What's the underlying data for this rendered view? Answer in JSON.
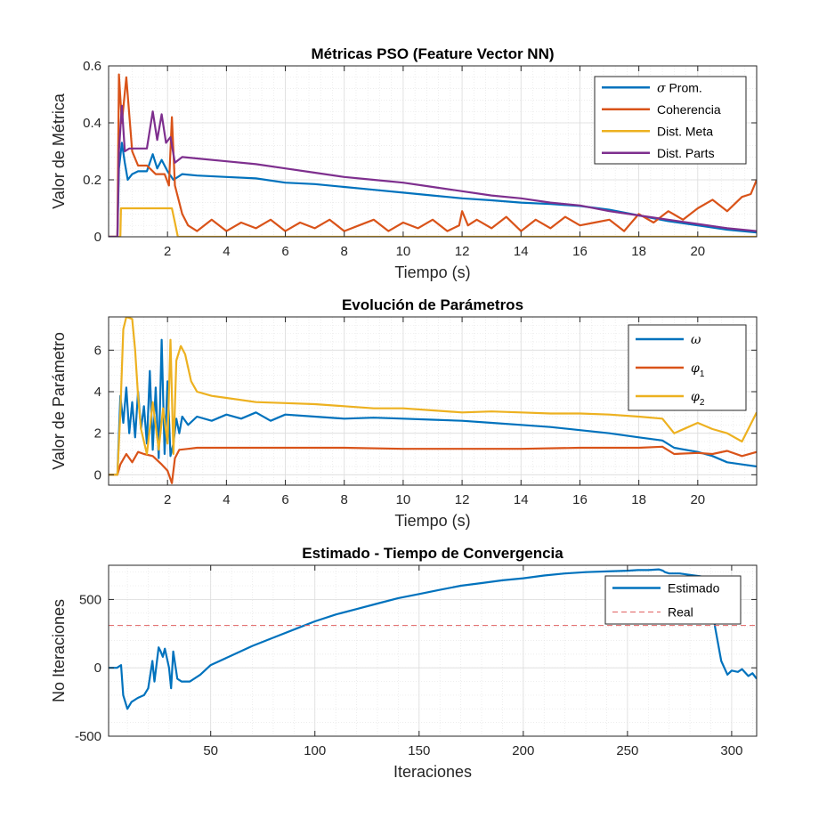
{
  "colors": {
    "blue": "#0072BD",
    "orange": "#D95319",
    "yellow": "#EDB120",
    "purple": "#7E2F8E",
    "red_dashed": "#E06060",
    "grid": "#DCDCDC",
    "axis": "#262626"
  },
  "chart_data": [
    {
      "type": "line",
      "title": "Métricas PSO (Feature Vector NN)",
      "xlabel": "Tiempo (s)",
      "ylabel": "Valor de Métrica",
      "xlim": [
        0,
        22
      ],
      "ylim": [
        0,
        0.6
      ],
      "xticks": [
        2,
        4,
        6,
        8,
        10,
        12,
        14,
        16,
        18,
        20
      ],
      "xtick_labels": [
        "2",
        "4",
        "6",
        "8",
        "10",
        "12",
        "14",
        "16",
        "18",
        "20"
      ],
      "yticks": [
        0,
        0.2,
        0.4,
        0.6
      ],
      "ytick_labels": [
        "0",
        "0.2",
        "0.4",
        "0.6"
      ],
      "grid": "on (with minor grid)",
      "legend_position": "top-right",
      "series": [
        {
          "name": "σ Prom.",
          "legend_symbol": "σ",
          "legend_rest": " Prom.",
          "color": "blue",
          "x": [
            0,
            0.3,
            0.35,
            0.45,
            0.55,
            0.65,
            0.8,
            1.0,
            1.3,
            1.5,
            1.65,
            1.8,
            2.0,
            2.2,
            2.35,
            2.5,
            3,
            4,
            5,
            6,
            7,
            8,
            9,
            10,
            11,
            12,
            13,
            14,
            15,
            16,
            17,
            18,
            19,
            20,
            21,
            22
          ],
          "y": [
            0,
            0,
            0.24,
            0.33,
            0.26,
            0.2,
            0.22,
            0.23,
            0.23,
            0.29,
            0.24,
            0.27,
            0.23,
            0.2,
            0.21,
            0.22,
            0.215,
            0.21,
            0.205,
            0.19,
            0.185,
            0.175,
            0.165,
            0.155,
            0.145,
            0.135,
            0.128,
            0.12,
            0.115,
            0.108,
            0.095,
            0.075,
            0.055,
            0.04,
            0.025,
            0.015
          ]
        },
        {
          "name": "Coherencia",
          "color": "orange",
          "x": [
            0,
            0.3,
            0.35,
            0.45,
            0.6,
            0.8,
            1.0,
            1.3,
            1.6,
            1.9,
            2.05,
            2.15,
            2.25,
            2.5,
            2.7,
            3,
            3.5,
            4,
            4.5,
            5,
            5.5,
            6,
            6.5,
            7,
            7.5,
            8,
            8.5,
            9,
            9.5,
            10,
            10.5,
            11,
            11.5,
            11.9,
            12.0,
            12.2,
            12.5,
            13,
            13.5,
            14,
            14.5,
            15,
            15.5,
            16,
            16.5,
            17,
            17.5,
            18,
            18.5,
            19,
            19.5,
            20,
            20.5,
            21,
            21.5,
            21.8,
            22
          ],
          "y": [
            0,
            0,
            0.57,
            0.4,
            0.56,
            0.3,
            0.25,
            0.25,
            0.22,
            0.22,
            0.18,
            0.42,
            0.18,
            0.08,
            0.04,
            0.02,
            0.06,
            0.02,
            0.05,
            0.03,
            0.06,
            0.02,
            0.05,
            0.03,
            0.06,
            0.02,
            0.04,
            0.06,
            0.02,
            0.05,
            0.03,
            0.06,
            0.02,
            0.04,
            0.09,
            0.04,
            0.06,
            0.03,
            0.07,
            0.02,
            0.06,
            0.03,
            0.07,
            0.04,
            0.05,
            0.06,
            0.02,
            0.08,
            0.05,
            0.09,
            0.06,
            0.1,
            0.13,
            0.09,
            0.14,
            0.15,
            0.2
          ]
        },
        {
          "name": "Dist. Meta",
          "color": "yellow",
          "x": [
            0,
            0.3,
            0.4,
            0.42,
            1.0,
            1.5,
            2.0,
            2.15,
            2.25,
            2.35,
            3,
            22
          ],
          "y": [
            0,
            0,
            0.0,
            0.1,
            0.1,
            0.1,
            0.1,
            0.1,
            0.05,
            0.0,
            0.0,
            0.0
          ]
        },
        {
          "name": "Dist. Parts",
          "color": "purple",
          "x": [
            0,
            0.3,
            0.35,
            0.45,
            0.55,
            0.7,
            1.0,
            1.3,
            1.5,
            1.65,
            1.8,
            1.95,
            2.1,
            2.25,
            2.5,
            3,
            4,
            5,
            6,
            7,
            8,
            9,
            10,
            11,
            12,
            13,
            14,
            15,
            16,
            17,
            18,
            19,
            20,
            21,
            22
          ],
          "y": [
            0,
            0,
            0.3,
            0.46,
            0.3,
            0.31,
            0.31,
            0.31,
            0.44,
            0.34,
            0.43,
            0.33,
            0.35,
            0.26,
            0.28,
            0.275,
            0.265,
            0.255,
            0.24,
            0.225,
            0.21,
            0.2,
            0.19,
            0.175,
            0.16,
            0.145,
            0.135,
            0.12,
            0.11,
            0.09,
            0.075,
            0.06,
            0.045,
            0.03,
            0.02
          ]
        }
      ]
    },
    {
      "type": "line",
      "title": "Evolución de Parámetros",
      "xlabel": "Tiempo (s)",
      "ylabel": "Valor de Parámetro",
      "xlim": [
        0,
        22
      ],
      "ylim": [
        -0.5,
        7.6
      ],
      "xticks": [
        2,
        4,
        6,
        8,
        10,
        12,
        14,
        16,
        18,
        20
      ],
      "xtick_labels": [
        "2",
        "4",
        "6",
        "8",
        "10",
        "12",
        "14",
        "16",
        "18",
        "20"
      ],
      "yticks": [
        0,
        2,
        4,
        6
      ],
      "ytick_labels": [
        "0",
        "2",
        "4",
        "6"
      ],
      "grid": "on (with minor grid)",
      "legend_position": "top-right",
      "series": [
        {
          "name": "ω",
          "legend_symbol": "ω",
          "legend_sub": "",
          "color": "blue",
          "x": [
            0,
            0.3,
            0.4,
            0.5,
            0.6,
            0.7,
            0.8,
            0.9,
            1.0,
            1.1,
            1.2,
            1.3,
            1.4,
            1.5,
            1.6,
            1.7,
            1.8,
            1.9,
            2.0,
            2.1,
            2.2,
            2.3,
            2.4,
            2.5,
            2.7,
            3.0,
            3.5,
            4.0,
            4.5,
            5.0,
            5.5,
            6.0,
            7,
            8,
            9,
            10,
            11,
            12,
            13,
            14,
            15,
            16,
            17,
            18,
            18.8,
            19.2,
            20,
            20.5,
            21,
            21.5,
            22
          ],
          "y": [
            0,
            0,
            3.8,
            2.5,
            4.2,
            2.0,
            3.5,
            1.8,
            4.0,
            2.2,
            3.3,
            1.5,
            5.0,
            1.2,
            4.2,
            0.8,
            6.5,
            1.0,
            4.5,
            0.9,
            1.5,
            2.7,
            2.0,
            2.8,
            2.4,
            2.8,
            2.6,
            2.9,
            2.7,
            3.0,
            2.6,
            2.9,
            2.8,
            2.7,
            2.75,
            2.7,
            2.65,
            2.6,
            2.5,
            2.4,
            2.3,
            2.15,
            2.0,
            1.8,
            1.65,
            1.3,
            1.1,
            0.9,
            0.6,
            0.5,
            0.4
          ]
        },
        {
          "name": "φ1",
          "legend_symbol": "φ",
          "legend_sub": "1",
          "color": "orange",
          "x": [
            0,
            0.3,
            0.4,
            0.6,
            0.8,
            1.0,
            1.2,
            1.5,
            1.8,
            2.0,
            2.15,
            2.25,
            2.4,
            2.7,
            3,
            4,
            6,
            8,
            10,
            12,
            14,
            16,
            18,
            18.8,
            19.2,
            20,
            20.5,
            21,
            21.5,
            22
          ],
          "y": [
            0,
            0,
            0.5,
            1.0,
            0.6,
            1.1,
            1.0,
            0.9,
            0.5,
            0.2,
            -0.4,
            0.8,
            1.2,
            1.25,
            1.3,
            1.3,
            1.3,
            1.3,
            1.25,
            1.25,
            1.25,
            1.3,
            1.3,
            1.35,
            1.0,
            1.05,
            1.0,
            1.15,
            0.9,
            1.1
          ]
        },
        {
          "name": "φ2",
          "legend_symbol": "φ",
          "legend_sub": "2",
          "color": "yellow",
          "x": [
            0,
            0.3,
            0.4,
            0.5,
            0.6,
            0.8,
            0.9,
            1.0,
            1.1,
            1.3,
            1.5,
            1.7,
            1.85,
            2.0,
            2.1,
            2.2,
            2.3,
            2.45,
            2.6,
            2.8,
            3.0,
            3.5,
            4,
            5,
            6,
            7,
            8,
            9,
            10,
            11,
            12,
            13,
            14,
            15,
            16,
            17,
            18,
            18.8,
            19.2,
            20,
            20.5,
            21,
            21.5,
            22
          ],
          "y": [
            0,
            0,
            3.0,
            7.0,
            7.6,
            7.5,
            6.0,
            3.8,
            2.2,
            1.0,
            3.5,
            1.2,
            3.2,
            1.5,
            6.5,
            1.0,
            5.5,
            6.2,
            5.8,
            4.5,
            4.0,
            3.8,
            3.7,
            3.5,
            3.45,
            3.4,
            3.3,
            3.2,
            3.2,
            3.1,
            3.0,
            3.05,
            3.0,
            2.95,
            2.95,
            2.9,
            2.8,
            2.7,
            2.0,
            2.5,
            2.2,
            2.0,
            1.6,
            3.0
          ]
        }
      ]
    },
    {
      "type": "line",
      "title": "Estimado - Tiempo de Convergencia",
      "xlabel": "Iteraciones",
      "ylabel": "No Iteraciones",
      "xlim": [
        1,
        312
      ],
      "ylim": [
        -500,
        750
      ],
      "xticks": [
        50,
        100,
        150,
        200,
        250,
        300
      ],
      "xtick_labels": [
        "50",
        "100",
        "150",
        "200",
        "250",
        "300"
      ],
      "yticks": [
        -500,
        0,
        500
      ],
      "ytick_labels": [
        "-500",
        "0",
        "500"
      ],
      "grid": "on (with minor grid)",
      "legend_position": "top-right",
      "series": [
        {
          "name": "Estimado",
          "color": "blue",
          "style": "solid",
          "x": [
            1,
            5,
            7,
            8,
            10,
            12,
            15,
            18,
            20,
            22,
            23,
            25,
            26,
            27,
            28,
            30,
            31,
            32,
            34,
            36,
            40,
            45,
            50,
            60,
            70,
            80,
            90,
            100,
            110,
            120,
            130,
            140,
            150,
            160,
            170,
            180,
            190,
            200,
            210,
            220,
            230,
            240,
            250,
            255,
            260,
            265,
            267,
            268,
            270,
            275,
            280,
            285,
            288,
            290,
            292,
            295,
            298,
            300,
            303,
            305,
            308,
            310,
            312
          ],
          "y": [
            0,
            0,
            20,
            -200,
            -300,
            -250,
            -220,
            -200,
            -150,
            50,
            -100,
            150,
            120,
            80,
            140,
            0,
            -150,
            120,
            -80,
            -100,
            -100,
            -50,
            20,
            90,
            160,
            220,
            280,
            340,
            390,
            430,
            470,
            510,
            540,
            570,
            600,
            620,
            640,
            655,
            675,
            690,
            700,
            705,
            710,
            715,
            715,
            720,
            710,
            700,
            690,
            690,
            680,
            670,
            650,
            550,
            300,
            50,
            -50,
            -20,
            -30,
            -10,
            -60,
            -40,
            -80
          ]
        },
        {
          "name": "Real",
          "color": "red_dashed",
          "style": "dashed",
          "x": [
            1,
            312
          ],
          "y": [
            310,
            310
          ]
        }
      ]
    }
  ]
}
